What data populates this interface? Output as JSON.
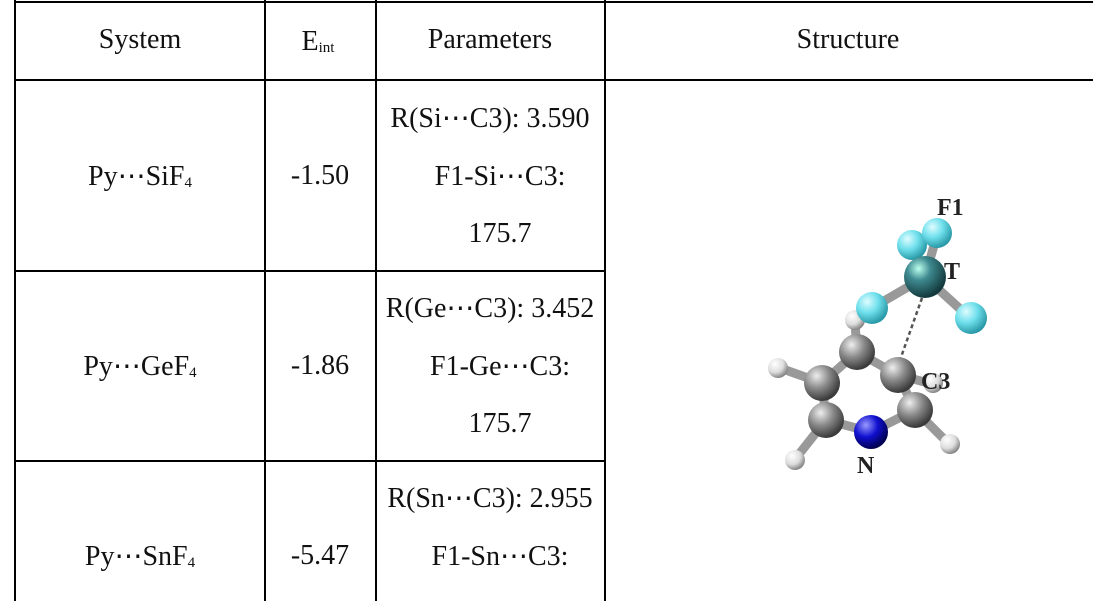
{
  "header": {
    "system": "System",
    "eint": {
      "main": "E",
      "sub": "int"
    },
    "parameters": "Parameters",
    "structure": "Structure"
  },
  "rows": [
    {
      "system": {
        "main": "Py⋯SiF",
        "sub": "4"
      },
      "eint": "-1.50",
      "parameters": [
        "R(Si⋯C3): 3.590",
        "F1-Si⋯C3:",
        "175.7"
      ]
    },
    {
      "system": {
        "main": "Py⋯GeF",
        "sub": "4"
      },
      "eint": "-1.86",
      "parameters": [
        "R(Ge⋯C3): 3.452",
        "F1-Ge⋯C3:",
        "175.7"
      ]
    },
    {
      "system": {
        "main": "Py⋯SnF",
        "sub": "4"
      },
      "eint": "-5.47",
      "parameters": [
        "R(Sn⋯C3): 2.955",
        "F1-Sn⋯C3:"
      ]
    }
  ],
  "structure_labels": {
    "f1": "F1",
    "t": "T",
    "c3": "C3",
    "n": "N"
  }
}
